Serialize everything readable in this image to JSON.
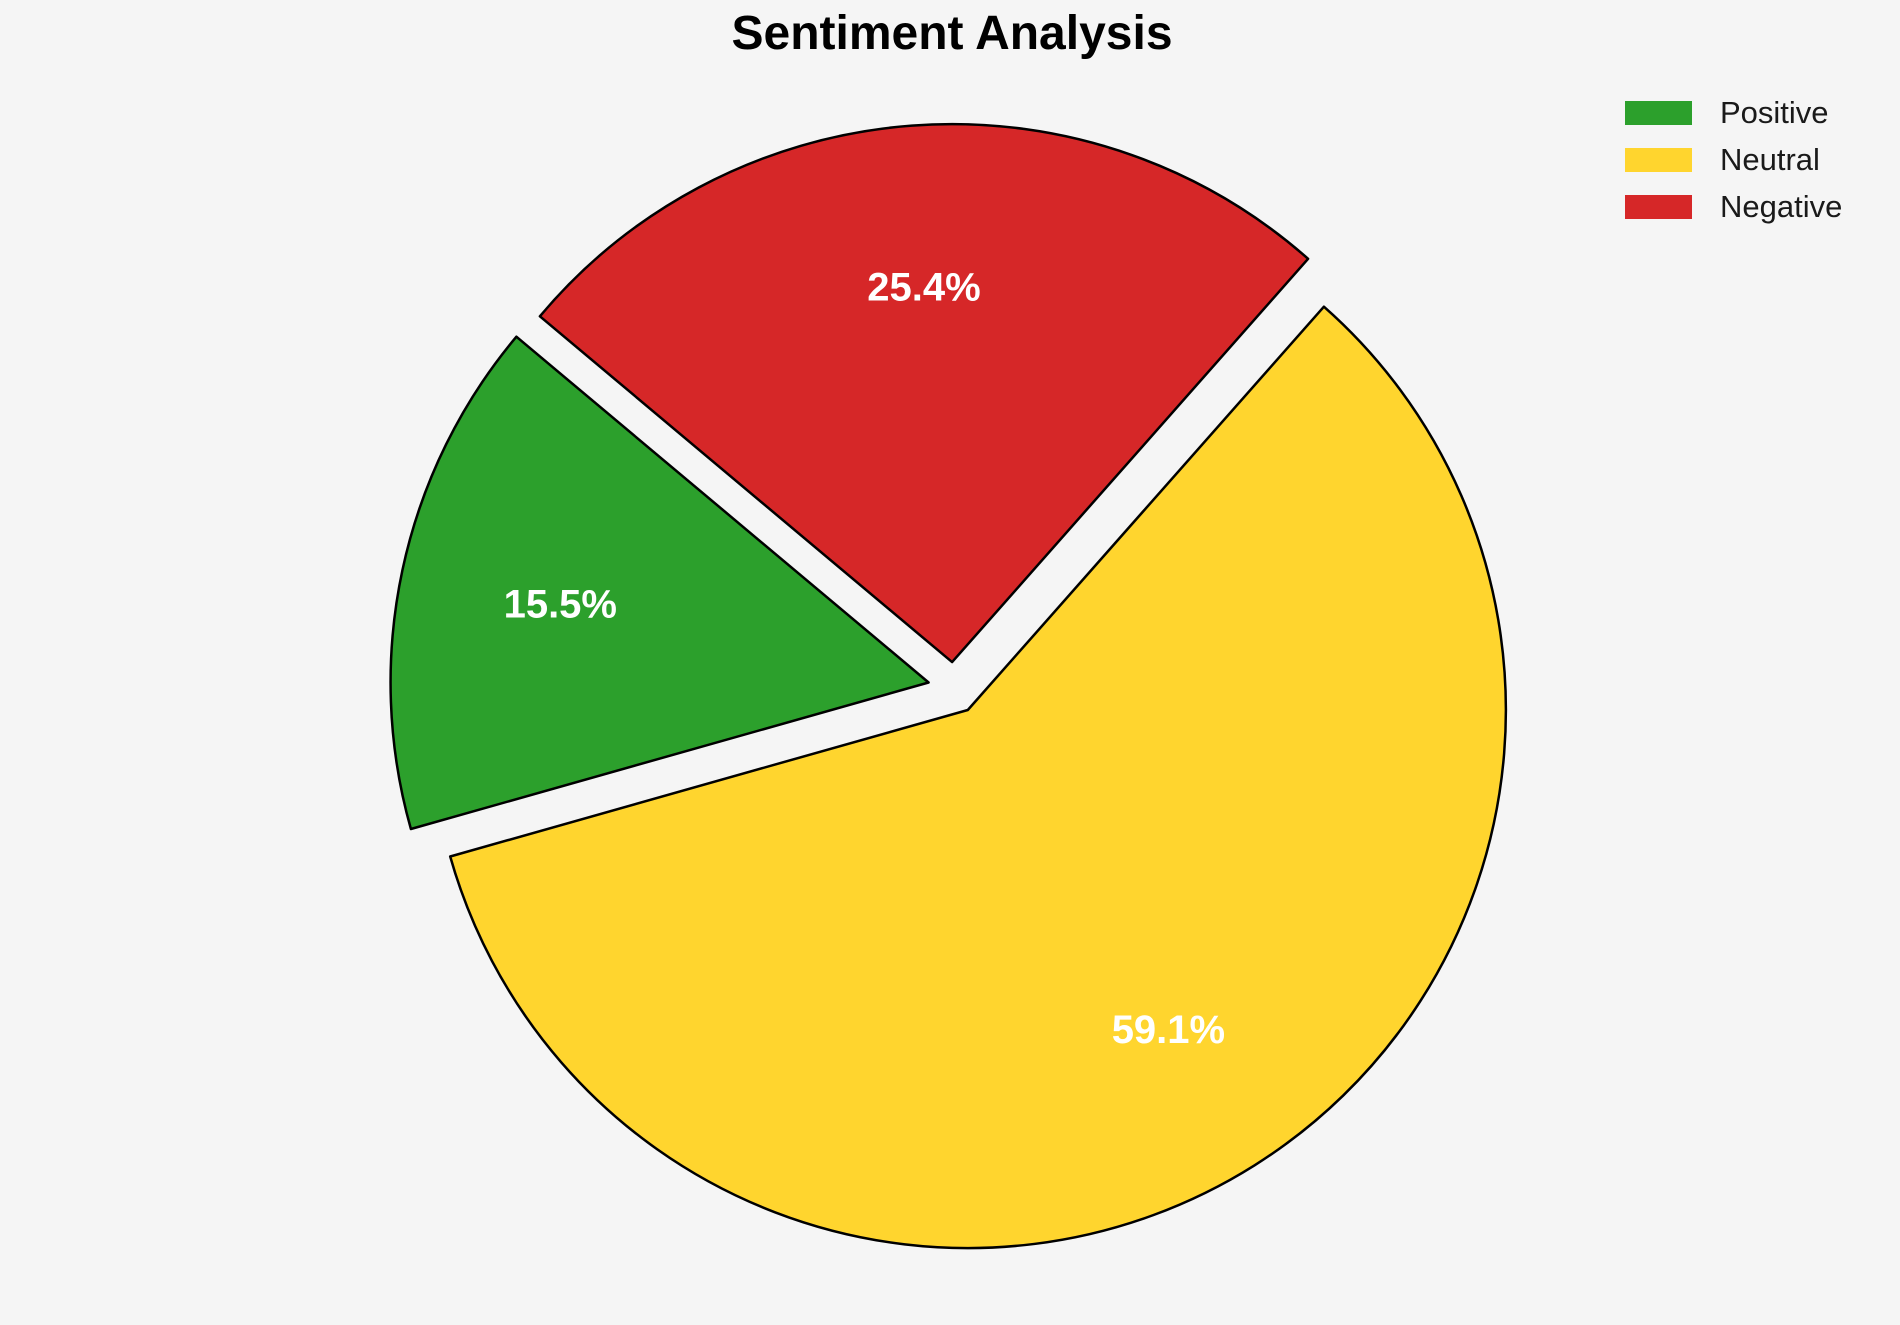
{
  "title": "Sentiment Analysis",
  "colors": {
    "background": "#F5F5F5",
    "title_text": "#000000",
    "legend_text": "#1A1A1A",
    "slice_edge": "#000000",
    "pct_label_text": "#FFFFFF"
  },
  "chart_data": {
    "type": "pie",
    "title": "Sentiment Analysis",
    "labels": [
      "Positive",
      "Neutral",
      "Negative"
    ],
    "values": [
      15.5,
      59.1,
      25.4
    ],
    "value_labels": [
      "15.5%",
      "59.1%",
      "25.4%"
    ],
    "colors": [
      "#2CA02C",
      "#FFD52E",
      "#D62728"
    ],
    "legend_position": "upper right",
    "legend_frame": false,
    "start_angle_deg": 140,
    "counterclockwise": true,
    "explode": [
      0.05,
      0.05,
      0.05
    ],
    "edge_color": "#000000",
    "autopct_color": "#FFFFFF"
  },
  "legend": {
    "items": [
      {
        "label": "Positive",
        "color": "#2CA02C"
      },
      {
        "label": "Neutral",
        "color": "#FFD52E"
      },
      {
        "label": "Negative",
        "color": "#D62728"
      }
    ]
  }
}
